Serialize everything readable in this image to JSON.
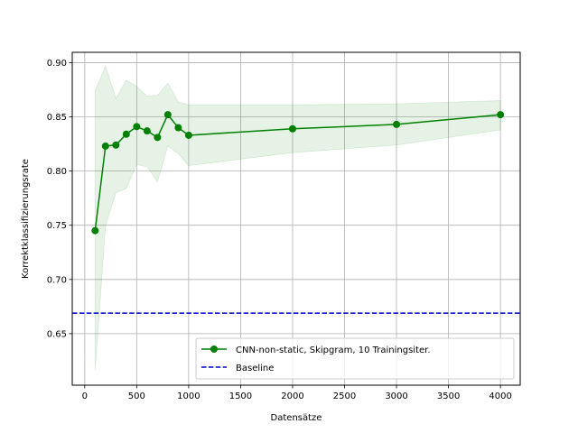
{
  "chart_data": {
    "type": "line",
    "title": "",
    "xlabel": "Datensätze",
    "ylabel": "Korrektklassifizierungsrate",
    "xlim": [
      -120,
      4190
    ],
    "ylim": [
      0.6025,
      0.9095
    ],
    "xticks": [
      0,
      500,
      1000,
      1500,
      2000,
      2500,
      3000,
      3500,
      4000
    ],
    "yticks": [
      0.65,
      0.7,
      0.75,
      0.8,
      0.85,
      0.9
    ],
    "ytick_labels": [
      "0.65",
      "0.70",
      "0.75",
      "0.80",
      "0.85",
      "0.90"
    ],
    "grid": true,
    "legend_position": "lower-right",
    "series": [
      {
        "name": "CNN-non-static, Skipgram, 10 Trainingsiter.",
        "color": "#008000",
        "marker": "circle",
        "x": [
          100,
          200,
          300,
          400,
          500,
          600,
          700,
          800,
          900,
          1000,
          2000,
          3000,
          4000
        ],
        "y": [
          0.745,
          0.823,
          0.824,
          0.834,
          0.841,
          0.837,
          0.831,
          0.852,
          0.84,
          0.833,
          0.839,
          0.843,
          0.852
        ],
        "band_upper": [
          0.874,
          0.897,
          0.867,
          0.884,
          0.878,
          0.869,
          0.87,
          0.881,
          0.864,
          0.861,
          0.861,
          0.862,
          0.865
        ],
        "band_lower": [
          0.616,
          0.749,
          0.78,
          0.784,
          0.806,
          0.804,
          0.79,
          0.823,
          0.816,
          0.805,
          0.817,
          0.824,
          0.838
        ],
        "band_color": "#008000"
      },
      {
        "name": "Baseline",
        "color": "#0000cc",
        "style": "dashed",
        "y_constant": 0.669
      }
    ]
  }
}
